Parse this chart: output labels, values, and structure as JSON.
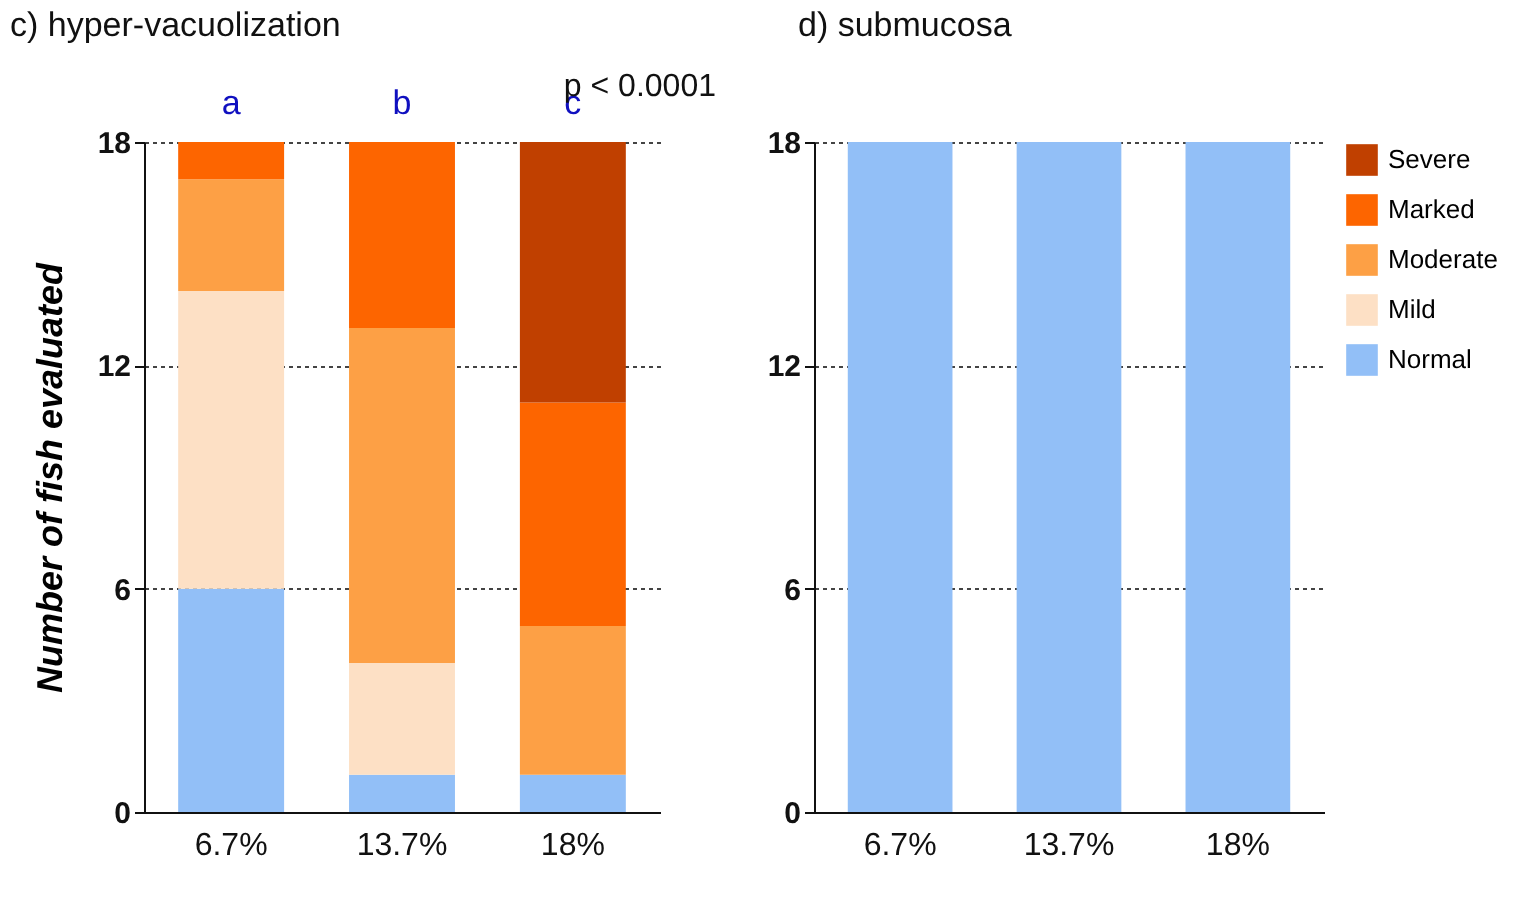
{
  "chart_data": [
    {
      "type": "bar",
      "title": "c) hyper-vacuolization",
      "ylabel": "Number of fish evaluated",
      "categories": [
        "6.7%",
        "13.7%",
        "18%"
      ],
      "stacked": true,
      "series": [
        {
          "name": "Normal",
          "color": "#92bff7",
          "values": [
            6,
            1,
            1
          ]
        },
        {
          "name": "Mild",
          "color": "#fde0c5",
          "values": [
            8,
            3,
            0
          ]
        },
        {
          "name": "Moderate",
          "color": "#fda045",
          "values": [
            3,
            9,
            4
          ]
        },
        {
          "name": "Marked",
          "color": "#fd6500",
          "values": [
            1,
            5,
            6
          ]
        },
        {
          "name": "Severe",
          "color": "#c04000",
          "values": [
            0,
            0,
            7
          ]
        }
      ],
      "ylim": [
        0,
        18
      ],
      "yticks": [
        0,
        6,
        12,
        18
      ],
      "grid": "y",
      "legend": "right",
      "annotations": [
        {
          "text": "a",
          "x": "6.7%",
          "y": 18
        },
        {
          "text": "b",
          "x": "13.7%",
          "y": 18
        },
        {
          "text": "c",
          "x": "18%",
          "y": 18
        },
        "p < 0.0001"
      ]
    },
    {
      "type": "bar",
      "title": "d) submucosa",
      "categories": [
        "6.7%",
        "13.7%",
        "18%"
      ],
      "stacked": true,
      "series": [
        {
          "name": "Normal",
          "color": "#92bff7",
          "values": [
            18,
            18,
            18
          ]
        },
        {
          "name": "Mild",
          "color": "#fde0c5",
          "values": [
            0,
            0,
            0
          ]
        },
        {
          "name": "Moderate",
          "color": "#fda045",
          "values": [
            0,
            0,
            0
          ]
        },
        {
          "name": "Marked",
          "color": "#fd6500",
          "values": [
            0,
            0,
            0
          ]
        },
        {
          "name": "Severe",
          "color": "#c04000",
          "values": [
            0,
            0,
            0
          ]
        }
      ],
      "ylim": [
        0,
        18
      ],
      "yticks": [
        0,
        6,
        12,
        18
      ],
      "grid": "y",
      "legend": "right"
    }
  ]
}
